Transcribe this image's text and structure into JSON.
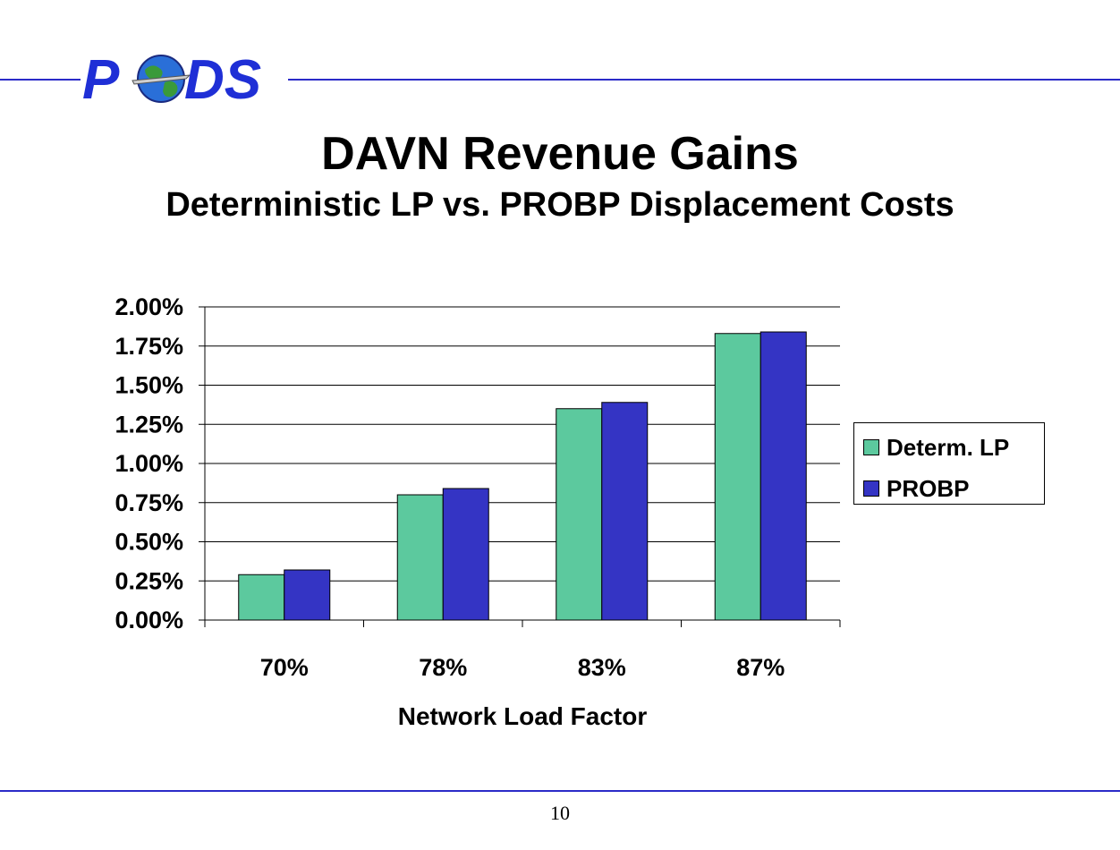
{
  "slide": {
    "logo_text": "PODS",
    "title": "DAVN Revenue Gains",
    "subtitle": "Deterministic LP vs. PROBP Displacement Costs",
    "page_number": "10"
  },
  "colors": {
    "rule": "#2b2bc8",
    "logo": "#1f2fd6",
    "series_0": "#5cc99e",
    "series_1": "#3434c4"
  },
  "chart_data": {
    "type": "bar",
    "categories": [
      "70%",
      "78%",
      "83%",
      "87%"
    ],
    "series": [
      {
        "name": "Determ. LP",
        "values": [
          0.29,
          0.8,
          1.35,
          1.83
        ]
      },
      {
        "name": "PROBP",
        "values": [
          0.32,
          0.84,
          1.39,
          1.84
        ]
      }
    ],
    "y_ticks": [
      "0.00%",
      "0.25%",
      "0.50%",
      "0.75%",
      "1.00%",
      "1.25%",
      "1.50%",
      "1.75%",
      "2.00%"
    ],
    "ylim": [
      0,
      2.0
    ],
    "xlabel": "Network Load Factor",
    "ylabel": "",
    "grid": true,
    "legend_position": "right"
  }
}
